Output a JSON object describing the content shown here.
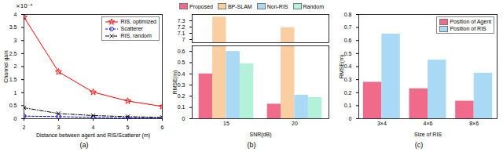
{
  "chart_data": [
    {
      "type": "line",
      "caption": "(a)",
      "x_label": "Distance between agent and RIS/Scatterer (m)",
      "y_label": "Channel gain",
      "annotation": "×10⁻⁴",
      "x": [
        2,
        3,
        4,
        5,
        6
      ],
      "series": [
        {
          "name": "RIS, optimized",
          "color": "#ff0000",
          "marker": "star",
          "line_style": "solid",
          "values": [
            3.9,
            1.8,
            1.02,
            0.68,
            0.47
          ]
        },
        {
          "name": "Scatterer",
          "color": "#0000ff",
          "marker": "circle",
          "line_style": "dashed",
          "values": [
            0.1,
            0.08,
            0.05,
            0.03,
            0.02
          ]
        },
        {
          "name": "RIS, random",
          "color": "#000000",
          "marker": "x",
          "line_style": "dashdot",
          "values": [
            0.42,
            0.2,
            0.12,
            0.08,
            0.05
          ]
        }
      ],
      "xlim": [
        2,
        6
      ],
      "xticks": [
        2,
        3,
        4,
        5,
        6
      ],
      "ylim": [
        0,
        4
      ],
      "yticks": [
        0,
        0.5,
        1,
        1.5,
        2,
        2.5,
        3,
        3.5,
        4
      ],
      "grid": false,
      "legend": "top-right"
    },
    {
      "type": "bar",
      "caption": "(b)",
      "x_label": "SNR(dB)",
      "y_label": "RMSE(m)",
      "categories": [
        "15",
        "20"
      ],
      "series": [
        {
          "name": "Proposed",
          "color": "#f06a8a",
          "values": [
            0.4,
            0.13
          ]
        },
        {
          "name": "BP-SLAM",
          "color": "#f9cfa2",
          "values": [
            7.36,
            7.19
          ]
        },
        {
          "name": "Non-RIS",
          "color": "#a9d9f5",
          "values": [
            0.6,
            0.21
          ]
        },
        {
          "name": "Random",
          "color": "#b3f2d9",
          "values": [
            0.49,
            0.19
          ]
        }
      ],
      "ylim": [
        0,
        7.4
      ],
      "y_break": [
        0.65,
        6.95
      ],
      "yticks": [
        0,
        0.1,
        0.2,
        0.3,
        0.4,
        0.5,
        0.6,
        7,
        7.1,
        7.2,
        7.3
      ],
      "grid": false,
      "legend": "top"
    },
    {
      "type": "bar",
      "caption": "(c)",
      "x_label": "Size of RIS",
      "y_label": "RMSE(m)",
      "categories": [
        "3×4",
        "4×6",
        "8×6"
      ],
      "series": [
        {
          "name": "Position of Agent",
          "color": "#f06a8a",
          "values": [
            0.28,
            0.23,
            0.135
          ]
        },
        {
          "name": "Position of RIS",
          "color": "#a9d9f5",
          "values": [
            0.65,
            0.45,
            0.35
          ]
        }
      ],
      "ylim": [
        0,
        0.8
      ],
      "yticks": [
        0,
        0.1,
        0.2,
        0.3,
        0.4,
        0.5,
        0.6,
        0.7,
        0.8
      ],
      "grid": false,
      "legend": "top-right"
    }
  ]
}
